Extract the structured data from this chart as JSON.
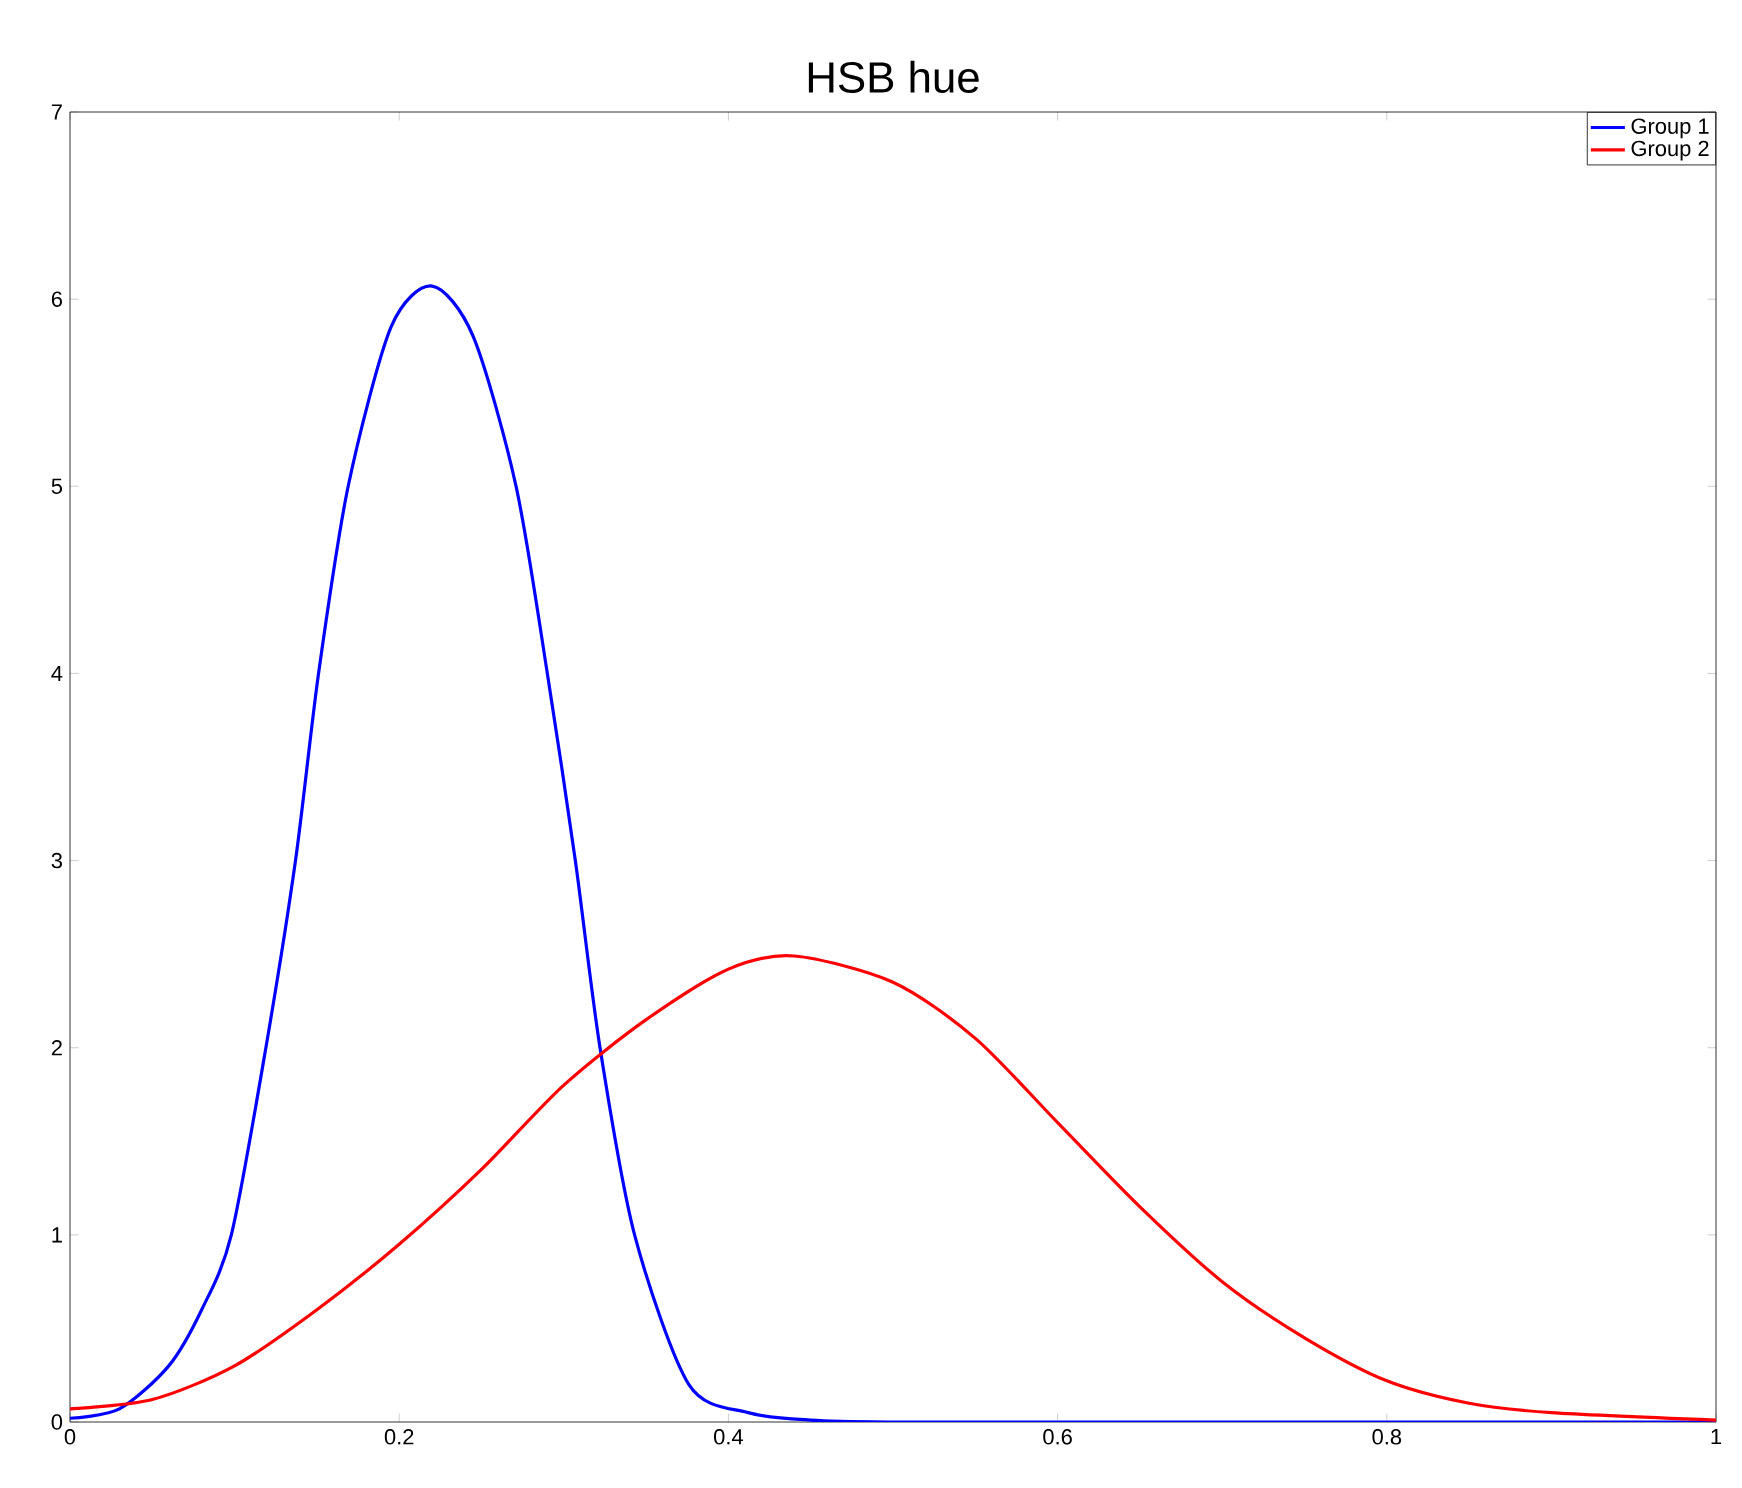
{
  "chart_data": {
    "type": "line",
    "title": "HSB hue",
    "xlim": [
      0,
      1
    ],
    "ylim": [
      0,
      7
    ],
    "xticks": [
      0,
      0.2,
      0.4,
      0.6,
      0.8,
      1
    ],
    "yticks": [
      0,
      1,
      2,
      3,
      4,
      5,
      6,
      7
    ],
    "legend": "top right",
    "grid": false,
    "marker": "none",
    "line_style": "solid",
    "series": [
      {
        "name": "Group 1",
        "color": "#0000ff",
        "x": [
          0,
          0.03,
          0.06,
          0.08,
          0.098,
          0.119,
          0.137,
          0.151,
          0.169,
          0.195,
          0.22,
          0.245,
          0.271,
          0.29,
          0.307,
          0.322,
          0.343,
          0.376,
          0.412,
          0.45,
          0.496,
          0.6,
          0.8,
          1
        ],
        "values": [
          0.02,
          0.07,
          0.3,
          0.6,
          1,
          2,
          3,
          4,
          5,
          5.85,
          6.07,
          5.8,
          5,
          4,
          3,
          2,
          1,
          0.2,
          0.05,
          0.01,
          0,
          0,
          0,
          0
        ]
      },
      {
        "name": "Group 2",
        "color": "#ff0000",
        "x": [
          0,
          0.05,
          0.1,
          0.15,
          0.2,
          0.25,
          0.3,
          0.35,
          0.4,
          0.44,
          0.5,
          0.55,
          0.6,
          0.65,
          0.7,
          0.75,
          0.8,
          0.85,
          0.9,
          1
        ],
        "values": [
          0.07,
          0.12,
          0.3,
          0.6,
          0.95,
          1.35,
          1.8,
          2.15,
          2.42,
          2.49,
          2.35,
          2.05,
          1.6,
          1.15,
          0.75,
          0.45,
          0.22,
          0.1,
          0.05,
          0.01
        ]
      }
    ]
  }
}
